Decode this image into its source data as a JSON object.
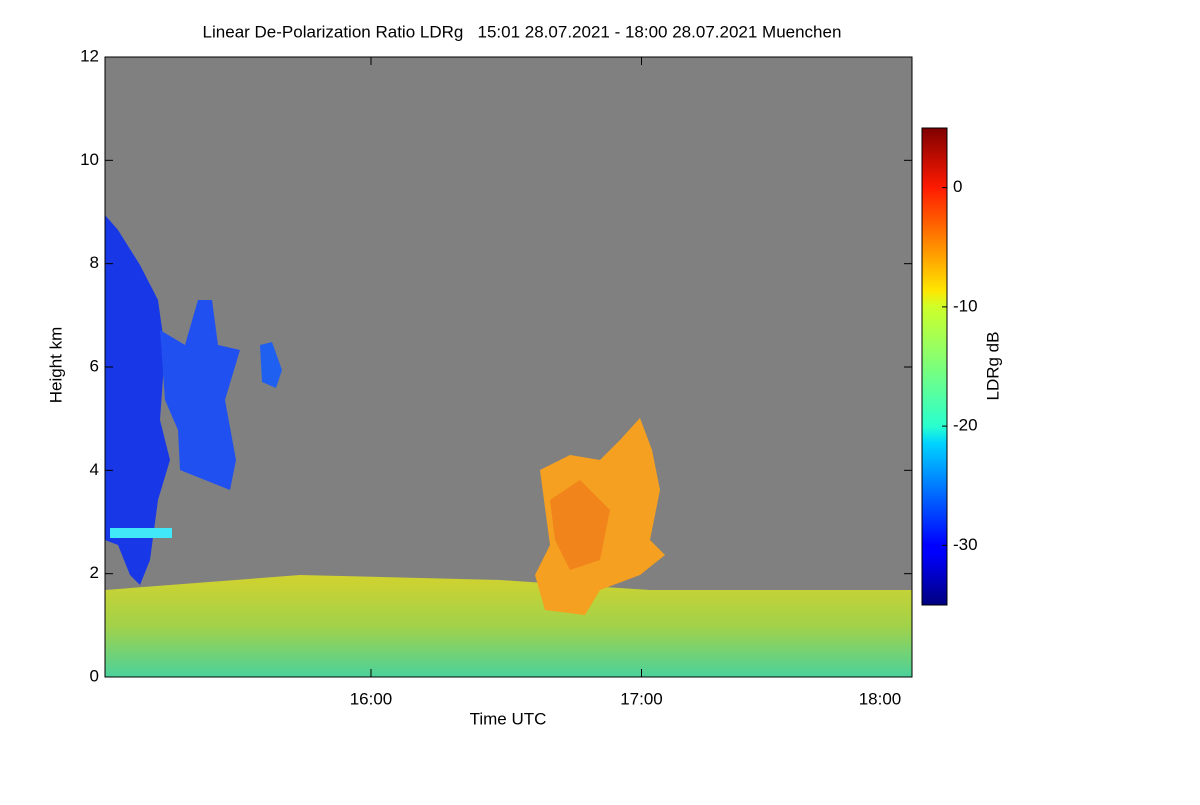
{
  "chart_data": {
    "type": "heatmap",
    "title": "Linear De-Polarization Ratio LDRg   15:01 28.07.2021 - 18:00 28.07.2021 Muenchen",
    "xlabel": "Time UTC",
    "ylabel": "Height km",
    "xlim": [
      15.0167,
      18.0
    ],
    "xticks": [
      {
        "value": 16,
        "label": "16:00"
      },
      {
        "value": 17,
        "label": "17:00"
      },
      {
        "value": 18,
        "label": "18:00"
      }
    ],
    "ylim": [
      0,
      12
    ],
    "yticks": [
      0,
      2,
      4,
      6,
      8,
      10,
      12
    ],
    "colorbar_label": "LDRg dB",
    "clim": [
      -35,
      5
    ],
    "cticks": [
      0,
      -10,
      -20,
      -30
    ],
    "colormap": "jet",
    "nodata_color": "#808080"
  }
}
